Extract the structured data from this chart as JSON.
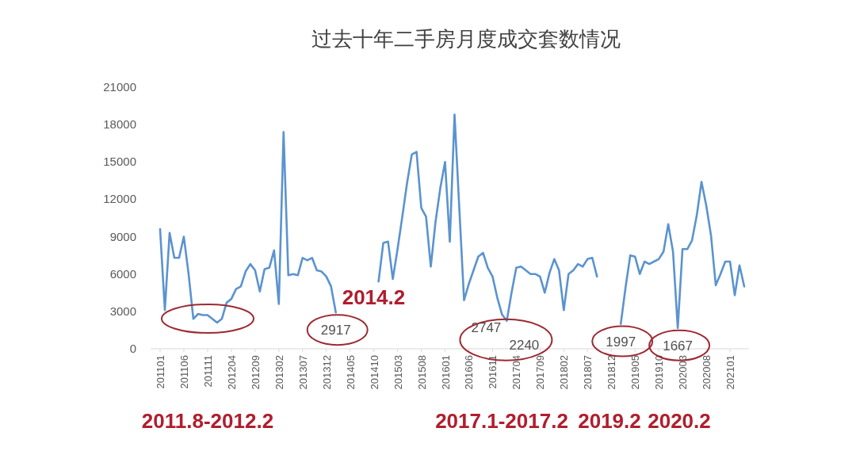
{
  "chart_data": {
    "type": "line",
    "title": "过去十年二手房月度成交套数情况",
    "x": [
      "2011-01",
      "2011-02",
      "2011-03",
      "2011-04",
      "2011-05",
      "2011-06",
      "2011-07",
      "2011-08",
      "2011-09",
      "2011-10",
      "2011-11",
      "2011-12",
      "2012-01",
      "2012-02",
      "2012-03",
      "2012-04",
      "2012-05",
      "2012-06",
      "2012-07",
      "2012-08",
      "2012-09",
      "2012-10",
      "2012-11",
      "2012-12",
      "2013-01",
      "2013-02",
      "2013-03",
      "2013-04",
      "2013-05",
      "2013-06",
      "2013-07",
      "2013-08",
      "2013-09",
      "2013-10",
      "2013-11",
      "2013-12",
      "2014-01",
      "2014-02",
      "2014-03",
      "2014-04",
      "2014-05",
      "2014-06",
      "2014-07",
      "2014-08",
      "2014-09",
      "2014-10",
      "2014-11",
      "2014-12",
      "2015-01",
      "2015-02",
      "2015-03",
      "2015-04",
      "2015-05",
      "2015-06",
      "2015-07",
      "2015-08",
      "2015-09",
      "2015-10",
      "2015-11",
      "2015-12",
      "2016-01",
      "2016-02",
      "2016-03",
      "2016-04",
      "2016-05",
      "2016-06",
      "2016-07",
      "2016-08",
      "2016-09",
      "2016-10",
      "2016-11",
      "2016-12",
      "2017-01",
      "2017-02",
      "2017-03",
      "2017-04",
      "2017-05",
      "2017-06",
      "2017-07",
      "2017-08",
      "2017-09",
      "2017-10",
      "2017-11",
      "2017-12",
      "2018-01",
      "2018-02",
      "2018-03",
      "2018-04",
      "2018-05",
      "2018-06",
      "2018-07",
      "2018-08",
      "2018-09",
      "2018-10",
      "2018-11",
      "2018-12",
      "2019-01",
      "2019-02",
      "2019-03",
      "2019-04",
      "2019-05",
      "2019-06",
      "2019-07",
      "2019-08",
      "2019-09",
      "2019-10",
      "2019-11",
      "2019-12",
      "2020-01",
      "2020-02",
      "2020-03",
      "2020-04",
      "2020-05",
      "2020-06",
      "2020-07",
      "2020-08",
      "2020-09",
      "2020-10",
      "2020-11",
      "2020-12",
      "2021-01",
      "2021-02",
      "2021-03",
      "2021-04"
    ],
    "series": [
      {
        "color": "#5b93cf",
        "values": [
          9600,
          3100,
          9300,
          7300,
          7300,
          9000,
          6000,
          2400,
          2800,
          2700,
          2700,
          2400,
          2100,
          2400,
          3700,
          4000,
          4800,
          5000,
          6200,
          6800,
          6300,
          4600,
          6400,
          6500,
          7900,
          3600,
          17400,
          5900,
          6000,
          5900,
          7300,
          7100,
          7300,
          6300,
          6200,
          5800,
          5000,
          2917,
          null,
          null,
          null,
          null,
          null,
          null,
          null,
          null,
          5400,
          8500,
          8600,
          5600,
          8000,
          10600,
          13300,
          15600,
          15800,
          11300,
          10600,
          6600,
          10200,
          12900,
          15000,
          8600,
          18800,
          11300,
          3900,
          5200,
          6300,
          7400,
          7700,
          6500,
          5800,
          4100,
          2747,
          2240,
          4500,
          6500,
          6600,
          6300,
          6000,
          6000,
          5800,
          4500,
          6100,
          7200,
          6300,
          3100,
          6000,
          6300,
          6800,
          6600,
          7200,
          7300,
          5800,
          null,
          null,
          null,
          null,
          1997,
          4900,
          7500,
          7400,
          6000,
          7000,
          6800,
          7000,
          7200,
          7800,
          10000,
          7800,
          1667,
          8000,
          8000,
          8700,
          10700,
          13400,
          11500,
          9100,
          5100,
          6000,
          7000,
          7000,
          4300,
          6700,
          5000
        ],
        "value_labels": [
          null,
          null,
          null,
          null,
          null,
          null,
          null,
          null,
          null,
          null,
          null,
          null,
          null,
          null,
          null,
          null,
          null,
          null,
          null,
          null,
          null,
          null,
          null,
          null,
          null,
          null,
          null,
          null,
          null,
          null,
          null,
          null,
          null,
          null,
          null,
          null,
          null,
          "2917",
          null,
          null,
          null,
          null,
          null,
          null,
          null,
          null,
          null,
          null,
          null,
          null,
          null,
          null,
          null,
          null,
          null,
          null,
          null,
          null,
          null,
          null,
          null,
          null,
          null,
          null,
          null,
          null,
          null,
          null,
          null,
          null,
          null,
          null,
          "2747",
          "2240",
          null,
          null,
          null,
          null,
          null,
          null,
          null,
          null,
          null,
          null,
          null,
          null,
          null,
          null,
          null,
          null,
          null,
          null,
          null,
          null,
          null,
          null,
          null,
          "1997",
          null,
          null,
          null,
          null,
          null,
          null,
          null,
          null,
          null,
          null,
          null,
          "1667",
          null,
          null,
          null,
          null,
          null,
          null,
          null,
          null,
          null,
          null,
          null,
          null,
          null,
          null
        ]
      }
    ],
    "xlim": [
      "2010-11",
      "2021-05"
    ],
    "xticks": [
      {
        "value": "2011-01",
        "label": "201101"
      },
      {
        "value": "2011-06",
        "label": "201106"
      },
      {
        "value": "2011-11",
        "label": "201111"
      },
      {
        "value": "2012-04",
        "label": "201204"
      },
      {
        "value": "2012-09",
        "label": "201209"
      },
      {
        "value": "2013-02",
        "label": "201302"
      },
      {
        "value": "2013-07",
        "label": "201307"
      },
      {
        "value": "2013-12",
        "label": "201312"
      },
      {
        "value": "2014-05",
        "label": "201405"
      },
      {
        "value": "2014-10",
        "label": "201410"
      },
      {
        "value": "2015-03",
        "label": "201503"
      },
      {
        "value": "2015-08",
        "label": "201508"
      },
      {
        "value": "2016-01",
        "label": "201601"
      },
      {
        "value": "2016-06",
        "label": "201606"
      },
      {
        "value": "2016-11",
        "label": "201611"
      },
      {
        "value": "2017-04",
        "label": "201704"
      },
      {
        "value": "2017-09",
        "label": "201709"
      },
      {
        "value": "2018-02",
        "label": "201802"
      },
      {
        "value": "2018-07",
        "label": "201807"
      },
      {
        "value": "2018-12",
        "label": "201812"
      },
      {
        "value": "2019-05",
        "label": "201905"
      },
      {
        "value": "2019-10",
        "label": "201910"
      },
      {
        "value": "2020-03",
        "label": "202003"
      },
      {
        "value": "2020-08",
        "label": "202008"
      },
      {
        "value": "2021-01",
        "label": "202101"
      }
    ],
    "ylim": [
      0,
      21000
    ],
    "yticks": [
      0,
      3000,
      6000,
      9000,
      12000,
      15000,
      18000,
      21000
    ],
    "annotations": [
      "2011.8-2012.2",
      {
        "text": "2014.2",
        "x": "2014-02",
        "y": 2917
      },
      "2017.1-2017.2",
      "2019.2",
      "2020.2"
    ]
  }
}
